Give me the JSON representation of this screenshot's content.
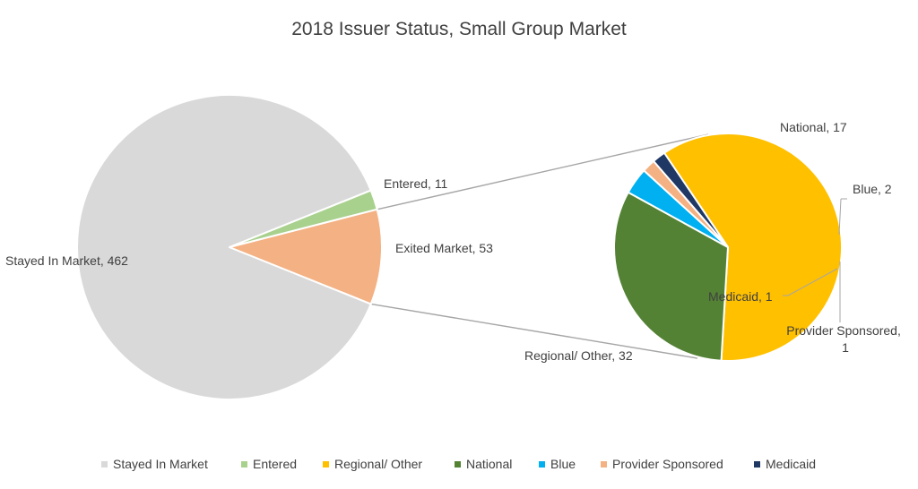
{
  "chart_data": {
    "type": "bar-of-pie",
    "title": "2018 Issuer Status, Small Group Market",
    "main_pie": {
      "slices": [
        {
          "name": "Stayed In Market",
          "value": 462,
          "label": "Stayed In Market, 462",
          "color": "#d9d9d9"
        },
        {
          "name": "Entered",
          "value": 11,
          "label": "Entered, 11",
          "color": "#a9d18e"
        },
        {
          "name": "Exited Market",
          "value": 53,
          "label": "Exited Market, 53",
          "color": "#f4b183"
        }
      ]
    },
    "secondary_pie": {
      "parent": "Exited Market",
      "slices": [
        {
          "name": "Regional/ Other",
          "value": 32,
          "label": "Regional/ Other, 32",
          "color": "#ffc000"
        },
        {
          "name": "National",
          "value": 17,
          "label": "National, 17",
          "color": "#548235"
        },
        {
          "name": "Blue",
          "value": 2,
          "label": "Blue, 2",
          "color": "#00b0f0"
        },
        {
          "name": "Provider Sponsored",
          "value": 1,
          "label_line1": "Provider Sponsored,",
          "label_line2": "1",
          "color": "#f4b183"
        },
        {
          "name": "Medicaid",
          "value": 1,
          "label": "Medicaid, 1",
          "color": "#1f3864"
        }
      ]
    },
    "legend": {
      "position": "bottom",
      "items": [
        {
          "name": "Stayed In Market",
          "color": "#d9d9d9"
        },
        {
          "name": "Entered",
          "color": "#a9d18e"
        },
        {
          "name": "Regional/ Other",
          "color": "#ffc000"
        },
        {
          "name": "National",
          "color": "#548235"
        },
        {
          "name": "Blue",
          "color": "#00b0f0"
        },
        {
          "name": "Provider Sponsored",
          "color": "#f4b183"
        },
        {
          "name": "Medicaid",
          "color": "#1f3864"
        }
      ]
    }
  }
}
